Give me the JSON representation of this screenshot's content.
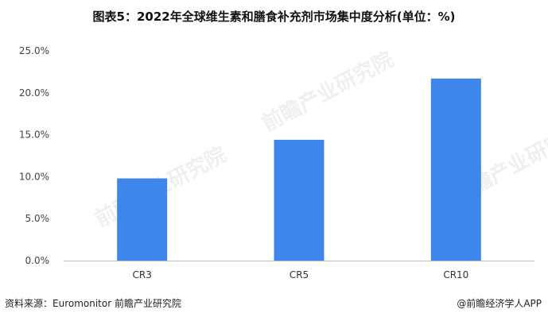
{
  "title": "图表5：2022年全球维生素和膳食补充剂市场集中度分析(单位：%)",
  "source": "资料来源：Euromonitor 前瞻产业研究院",
  "credit": "@前瞻经济学人APP",
  "watermark": "前瞻产业研究院",
  "colors": {
    "bar": "#3F86EB",
    "axis": "#BFBFBF"
  },
  "chart_data": {
    "type": "bar",
    "categories": [
      "CR3",
      "CR5",
      "CR10"
    ],
    "values": [
      9.8,
      14.4,
      21.7
    ],
    "ylim": [
      0,
      25
    ],
    "yticks": [
      "0.0%",
      "5.0%",
      "10.0%",
      "15.0%",
      "20.0%",
      "25.0%"
    ],
    "ytick_values": [
      0,
      5,
      10,
      15,
      20,
      25
    ],
    "grid": false
  }
}
